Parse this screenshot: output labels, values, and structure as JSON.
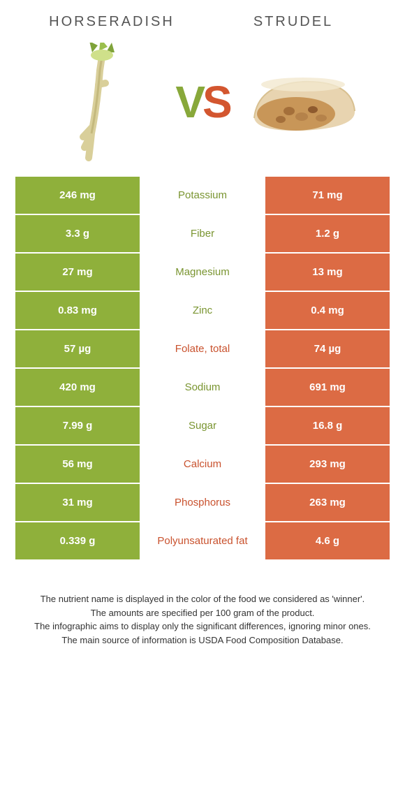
{
  "food1": {
    "name": "HORSERADISH",
    "color": "#8fb03b"
  },
  "food2": {
    "name": "STRUDEL",
    "color": "#dc6b44"
  },
  "nutrientColors": {
    "winner1": "#7a9531",
    "winner2": "#c9522e"
  },
  "rows": [
    {
      "nutrient": "Potassium",
      "v1": "246 mg",
      "v2": "71 mg",
      "winner": 1
    },
    {
      "nutrient": "Fiber",
      "v1": "3.3 g",
      "v2": "1.2 g",
      "winner": 1
    },
    {
      "nutrient": "Magnesium",
      "v1": "27 mg",
      "v2": "13 mg",
      "winner": 1
    },
    {
      "nutrient": "Zinc",
      "v1": "0.83 mg",
      "v2": "0.4 mg",
      "winner": 1
    },
    {
      "nutrient": "Folate, total",
      "v1": "57 µg",
      "v2": "74 µg",
      "winner": 2
    },
    {
      "nutrient": "Sodium",
      "v1": "420 mg",
      "v2": "691 mg",
      "winner": 1
    },
    {
      "nutrient": "Sugar",
      "v1": "7.99 g",
      "v2": "16.8 g",
      "winner": 1
    },
    {
      "nutrient": "Calcium",
      "v1": "56 mg",
      "v2": "293 mg",
      "winner": 2
    },
    {
      "nutrient": "Phosphorus",
      "v1": "31 mg",
      "v2": "263 mg",
      "winner": 2
    },
    {
      "nutrient": "Polyunsaturated fat",
      "v1": "0.339 g",
      "v2": "4.6 g",
      "winner": 2
    }
  ],
  "footer": [
    "The nutrient name is displayed in the color of the food we considered as 'winner'.",
    "The amounts are specified per 100 gram of the product.",
    "The infographic aims to display only the significant differences, ignoring minor ones.",
    "The main source of information is USDA Food Composition Database."
  ]
}
